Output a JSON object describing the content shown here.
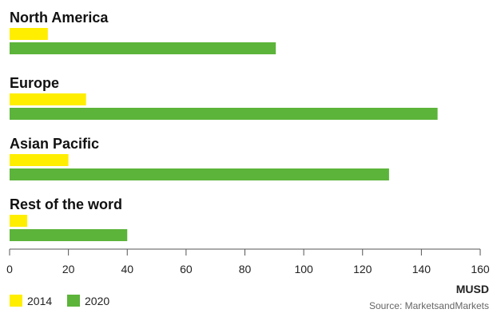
{
  "chart_data": {
    "type": "bar",
    "orientation": "horizontal",
    "categories": [
      "North America",
      "Europe",
      "Asian Pacific",
      "Rest of the word"
    ],
    "series": [
      {
        "name": "2014",
        "color": "#ffee00",
        "values": [
          13,
          26,
          20,
          6
        ]
      },
      {
        "name": "2020",
        "color": "#5cb43a",
        "values": [
          90.5,
          145.5,
          129,
          40
        ]
      }
    ],
    "xlim": [
      0,
      160
    ],
    "xticks": [
      0,
      20,
      40,
      60,
      80,
      100,
      120,
      140,
      160
    ],
    "xlabel": "MUSD",
    "legend_position": "bottom-left",
    "grid": false,
    "source": "Source: MarketsandMarkets"
  }
}
